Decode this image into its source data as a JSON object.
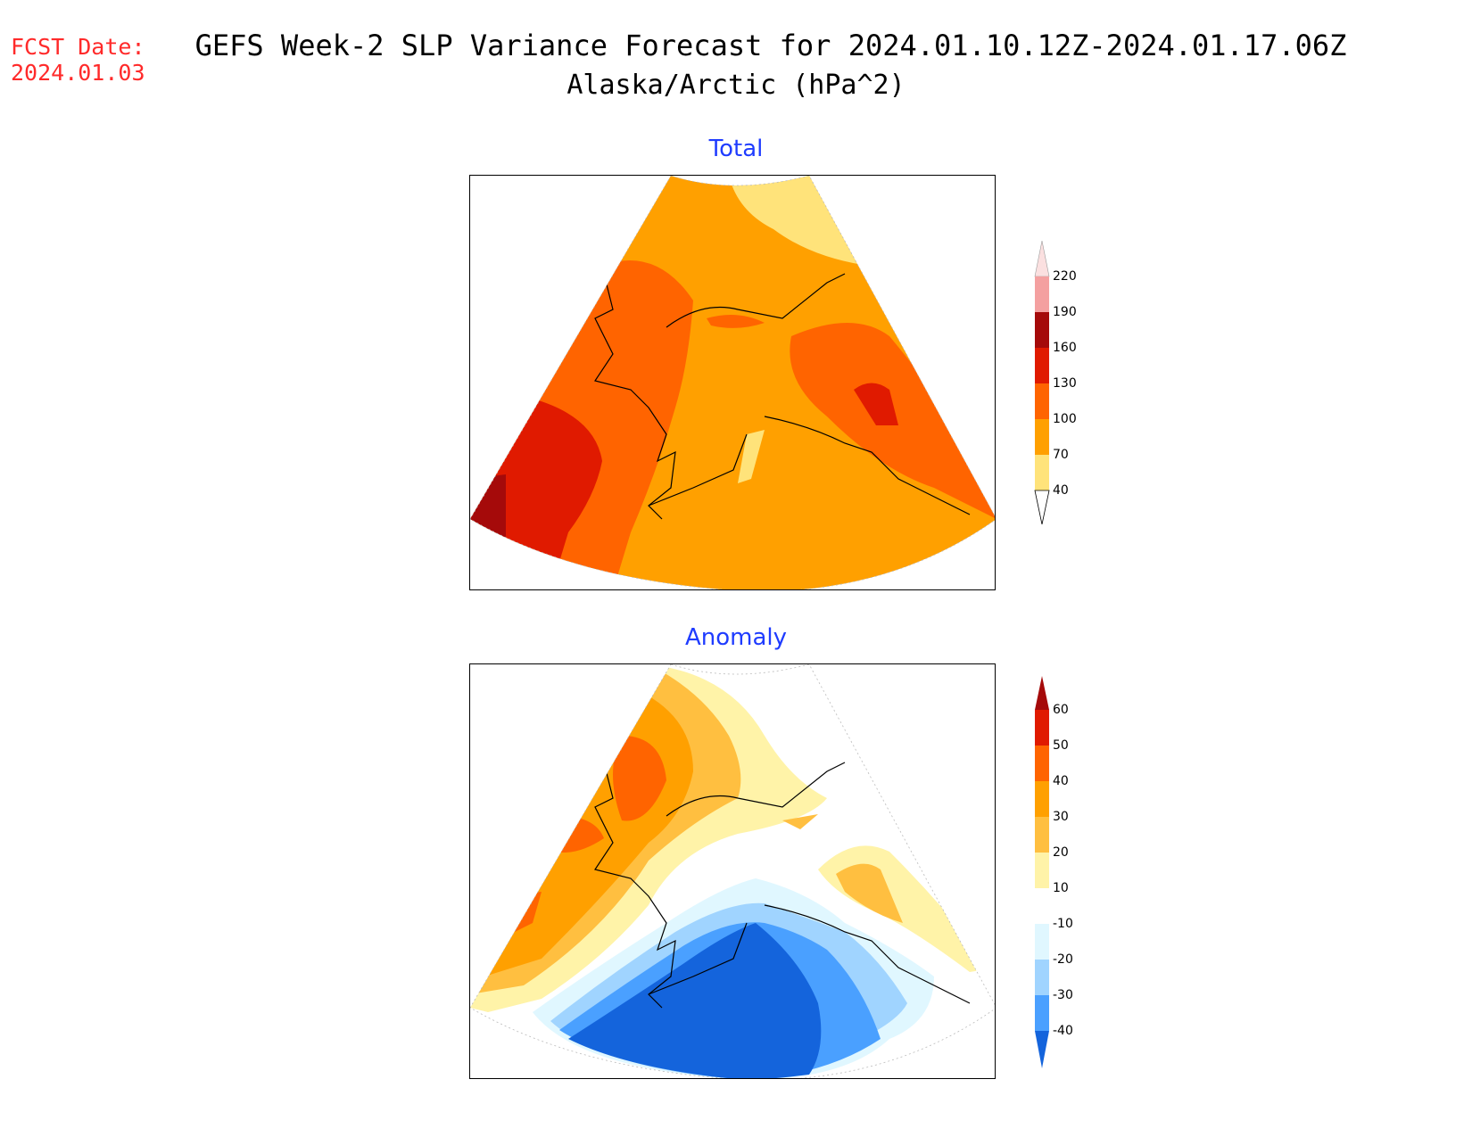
{
  "header": {
    "fcst_line1": "FCST Date:",
    "fcst_line2": "2024.01.03",
    "title_line1": "GEFS Week-2 SLP Variance Forecast for 2024.01.10.12Z-2024.01.17.06Z",
    "title_line2": "Alaska/Arctic (hPa^2)"
  },
  "panels": {
    "total": {
      "title": "Total",
      "colorbar": {
        "levels": [
          "220",
          "190",
          "160",
          "130",
          "100",
          "70",
          "40"
        ],
        "colors": [
          "#fbe0e0",
          "#f4a0a0",
          "#a50a0a",
          "#e01a00",
          "#ff6400",
          "#ffa000",
          "#ffe37a"
        ]
      }
    },
    "anomaly": {
      "title": "Anomaly",
      "colorbar": {
        "levels": [
          "60",
          "50",
          "40",
          "30",
          "20",
          "10",
          "-10",
          "-20",
          "-30",
          "-40"
        ],
        "colors": [
          "#a50a0a",
          "#e01a00",
          "#ff6400",
          "#ffa000",
          "#ffbf40",
          "#fff3a8",
          "#ffffff",
          "#e0f7ff",
          "#a0d4ff",
          "#4aa0ff",
          "#1464dc"
        ]
      }
    }
  },
  "colors": {
    "title_red": "#ff2a2a",
    "panel_title_blue": "#1f3cff"
  }
}
